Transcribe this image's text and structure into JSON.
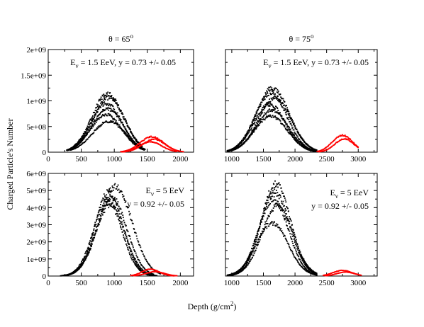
{
  "figure": {
    "ylabel": "Charged Particle's Number",
    "xlabel_main": "Depth (g/cm",
    "xlabel_sup": "2",
    "xlabel_end": ")"
  },
  "chart_data": [
    {
      "type": "scatter",
      "column_title": {
        "main": "θ = 65",
        "sup": "o"
      },
      "annotation": {
        "lines": [
          {
            "pre": "E",
            "sub": "ν",
            "post": " = 1.5 EeV, y = 0.73 +/- 0.05"
          }
        ]
      },
      "xlim": [
        0,
        2200
      ],
      "ylim": [
        0,
        2000000000
      ],
      "xticks": [
        0,
        500,
        1000,
        1500,
        2000
      ],
      "yticks": [
        0,
        500000000,
        1000000000,
        1500000000,
        2000000000
      ],
      "yticklabels": [
        "0",
        "5e+08",
        "1e+09",
        "1.5e+09",
        "2e+09"
      ],
      "series": [
        {
          "color": "#000000",
          "profiles": [
            {
              "start": 280,
              "end": 1420,
              "peak": 1130000000,
              "xmax": 900,
              "width": 240
            },
            {
              "start": 290,
              "end": 1430,
              "peak": 1060000000,
              "xmax": 920,
              "width": 240
            },
            {
              "start": 300,
              "end": 1440,
              "peak": 950000000,
              "xmax": 880,
              "width": 235
            },
            {
              "start": 310,
              "end": 1450,
              "peak": 840000000,
              "xmax": 900,
              "width": 240
            },
            {
              "start": 330,
              "end": 1460,
              "peak": 730000000,
              "xmax": 880,
              "width": 240
            },
            {
              "start": 340,
              "end": 1470,
              "peak": 600000000,
              "xmax": 920,
              "width": 250
            }
          ]
        },
        {
          "color": "#ff0000",
          "profiles": [
            {
              "start": 1100,
              "end": 2050,
              "peak": 300000000,
              "xmax": 1570,
              "width": 180
            },
            {
              "start": 1120,
              "end": 2000,
              "peak": 250000000,
              "xmax": 1600,
              "width": 170
            },
            {
              "start": 1150,
              "end": 1950,
              "peak": 200000000,
              "xmax": 1550,
              "width": 170
            }
          ]
        }
      ]
    },
    {
      "type": "scatter",
      "column_title": {
        "main": "θ = 75",
        "sup": "o"
      },
      "annotation": {
        "lines": [
          {
            "pre": "E",
            "sub": "ν",
            "post": " = 1.5 EeV, y = 0.73 +/- 0.05"
          }
        ]
      },
      "xlim": [
        900,
        3300
      ],
      "ylim": [
        0,
        2000000000
      ],
      "xticks": [
        1000,
        1500,
        2000,
        2500,
        3000
      ],
      "yticks": [
        0,
        500000000,
        1000000000,
        1500000000,
        2000000000
      ],
      "yticklabels": [
        "",
        "",
        "",
        "",
        ""
      ],
      "series": [
        {
          "color": "#000000",
          "profiles": [
            {
              "start": 930,
              "end": 2350,
              "peak": 1250000000,
              "xmax": 1650,
              "width": 260
            },
            {
              "start": 930,
              "end": 2350,
              "peak": 1150000000,
              "xmax": 1620,
              "width": 255
            },
            {
              "start": 930,
              "end": 2350,
              "peak": 1050000000,
              "xmax": 1680,
              "width": 260
            },
            {
              "start": 930,
              "end": 2350,
              "peak": 930000000,
              "xmax": 1600,
              "width": 250
            },
            {
              "start": 930,
              "end": 2350,
              "peak": 820000000,
              "xmax": 1640,
              "width": 255
            },
            {
              "start": 930,
              "end": 2350,
              "peak": 700000000,
              "xmax": 1620,
              "width": 260
            }
          ]
        },
        {
          "color": "#ff0000",
          "profiles": [
            {
              "start": 2350,
              "end": 3000,
              "peak": 330000000,
              "xmax": 2750,
              "width": 160
            },
            {
              "start": 2380,
              "end": 3000,
              "peak": 260000000,
              "xmax": 2780,
              "width": 150
            }
          ]
        }
      ]
    },
    {
      "type": "scatter",
      "column_title": null,
      "annotation": {
        "lines": [
          {
            "pre": "E",
            "sub": "ν",
            "post": " = 5 EeV"
          },
          {
            "pre": "",
            "sub": "",
            "post": "y = 0.92 +/- 0.05"
          }
        ]
      },
      "xlim": [
        0,
        2200
      ],
      "ylim": [
        0,
        6000000000
      ],
      "xticks": [
        0,
        500,
        1000,
        1500,
        2000
      ],
      "yticks": [
        0,
        1000000000,
        2000000000,
        3000000000,
        4000000000,
        5000000000,
        6000000000
      ],
      "yticklabels": [
        "0",
        "1e+09",
        "2e+09",
        "3e+09",
        "4e+09",
        "5e+09",
        "6e+09"
      ],
      "series": [
        {
          "color": "#000000",
          "profiles": [
            {
              "start": 190,
              "end": 1580,
              "peak": 4900000000,
              "xmax": 920,
              "width": 210
            },
            {
              "start": 200,
              "end": 1600,
              "peak": 4600000000,
              "xmax": 960,
              "width": 230
            },
            {
              "start": 210,
              "end": 1620,
              "peak": 4400000000,
              "xmax": 900,
              "width": 215
            },
            {
              "start": 220,
              "end": 1650,
              "peak": 4200000000,
              "xmax": 940,
              "width": 220
            },
            {
              "start": 240,
              "end": 1700,
              "peak": 5200000000,
              "xmax": 1020,
              "width": 250
            }
          ]
        },
        {
          "color": "#ff0000",
          "profiles": [
            {
              "start": 1250,
              "end": 1900,
              "peak": 400000000,
              "xmax": 1550,
              "width": 130
            },
            {
              "start": 1300,
              "end": 1950,
              "peak": 250000000,
              "xmax": 1620,
              "width": 140
            }
          ]
        }
      ]
    },
    {
      "type": "scatter",
      "column_title": null,
      "annotation": {
        "lines": [
          {
            "pre": "E",
            "sub": "ν",
            "post": " = 5 EeV"
          },
          {
            "pre": "",
            "sub": "",
            "post": "y = 0.92 +/- 0.05"
          }
        ]
      },
      "xlim": [
        900,
        3300
      ],
      "ylim": [
        0,
        6000000000
      ],
      "xticks": [
        1000,
        1500,
        2000,
        2500,
        3000
      ],
      "yticks": [
        0,
        1000000000,
        2000000000,
        3000000000,
        4000000000,
        5000000000,
        6000000000
      ],
      "yticklabels": [
        "",
        "",
        "",
        "",
        "",
        "",
        ""
      ],
      "series": [
        {
          "color": "#000000",
          "profiles": [
            {
              "start": 930,
              "end": 2350,
              "peak": 5400000000,
              "xmax": 1700,
              "width": 230
            },
            {
              "start": 930,
              "end": 2350,
              "peak": 4900000000,
              "xmax": 1680,
              "width": 240
            },
            {
              "start": 930,
              "end": 2350,
              "peak": 4500000000,
              "xmax": 1660,
              "width": 235
            },
            {
              "start": 930,
              "end": 2350,
              "peak": 4100000000,
              "xmax": 1720,
              "width": 245
            },
            {
              "start": 930,
              "end": 2350,
              "peak": 3100000000,
              "xmax": 1640,
              "width": 250
            }
          ]
        },
        {
          "color": "#ff0000",
          "profiles": [
            {
              "start": 2450,
              "end": 3050,
              "peak": 330000000,
              "xmax": 2750,
              "width": 150
            },
            {
              "start": 2480,
              "end": 3000,
              "peak": 230000000,
              "xmax": 2800,
              "width": 140
            }
          ]
        }
      ]
    }
  ]
}
